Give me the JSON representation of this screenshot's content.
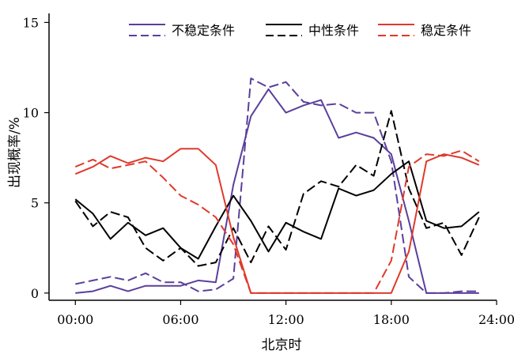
{
  "chart_data": {
    "type": "line",
    "title": "",
    "xlabel": "北京时",
    "ylabel": "出现概率/%",
    "xlim": [
      -1.5,
      24
    ],
    "ylim": [
      -0.4,
      15.5
    ],
    "x_ticks": [
      0,
      6,
      12,
      18,
      24
    ],
    "x_tick_labels": [
      "00:00",
      "06:00",
      "12:00",
      "18:00",
      "24:00"
    ],
    "y_ticks": [
      0,
      5,
      10,
      15
    ],
    "y_tick_labels": [
      "0",
      "5",
      "10",
      "15"
    ],
    "legend_position": "top",
    "x": [
      0,
      1,
      2,
      3,
      4,
      5,
      6,
      7,
      8,
      9,
      10,
      11,
      12,
      13,
      14,
      15,
      16,
      17,
      18,
      19,
      20,
      21,
      22,
      23
    ],
    "series": [
      {
        "name": "不稳定条件",
        "color": "#5b3f9c",
        "dash": "solid",
        "values": [
          0.0,
          0.1,
          0.4,
          0.1,
          0.4,
          0.4,
          0.4,
          0.7,
          0.6,
          6.0,
          9.8,
          11.3,
          10.0,
          10.4,
          10.7,
          8.6,
          8.9,
          8.6,
          7.7,
          4.0,
          0.0,
          0.0,
          0.0,
          0.0
        ]
      },
      {
        "name": "不稳定条件",
        "color": "#5b3f9c",
        "dash": "dashed",
        "values": [
          0.5,
          0.7,
          0.9,
          0.7,
          1.1,
          0.6,
          0.6,
          0.1,
          0.2,
          0.8,
          11.9,
          11.4,
          11.7,
          10.6,
          10.4,
          10.5,
          10.0,
          10.0,
          7.3,
          0.9,
          0.0,
          0.0,
          0.1,
          0.1
        ]
      },
      {
        "name": "中性条件",
        "color": "#000000",
        "dash": "solid",
        "values": [
          5.2,
          4.4,
          3.0,
          3.9,
          3.2,
          3.6,
          2.5,
          1.9,
          3.7,
          5.4,
          4.0,
          2.3,
          3.9,
          3.4,
          3.0,
          5.8,
          5.4,
          5.7,
          6.6,
          7.3,
          4.0,
          3.6,
          3.7,
          4.5
        ]
      },
      {
        "name": "中性条件",
        "color": "#000000",
        "dash": "dashed",
        "values": [
          5.1,
          3.7,
          4.5,
          4.2,
          2.5,
          1.8,
          2.5,
          1.5,
          1.7,
          3.6,
          1.7,
          3.7,
          2.4,
          5.5,
          6.2,
          5.9,
          7.1,
          6.5,
          10.1,
          5.8,
          3.6,
          3.9,
          2.1,
          4.2
        ]
      },
      {
        "name": "稳定条件",
        "color": "#e0392b",
        "dash": "solid",
        "values": [
          6.6,
          7.0,
          7.6,
          7.2,
          7.5,
          7.3,
          8.0,
          8.0,
          7.1,
          3.1,
          0.0,
          0.0,
          0.0,
          0.0,
          0.0,
          0.0,
          0.0,
          0.0,
          0.0,
          2.3,
          7.3,
          7.7,
          7.5,
          7.1
        ]
      },
      {
        "name": "稳定条件",
        "color": "#e0392b",
        "dash": "dashed",
        "values": [
          7.0,
          7.4,
          6.9,
          7.1,
          7.3,
          6.4,
          5.4,
          4.9,
          4.2,
          2.7,
          0.0,
          0.0,
          0.0,
          0.0,
          0.0,
          0.0,
          0.0,
          0.0,
          1.8,
          7.0,
          7.7,
          7.6,
          7.9,
          7.3
        ]
      }
    ]
  }
}
